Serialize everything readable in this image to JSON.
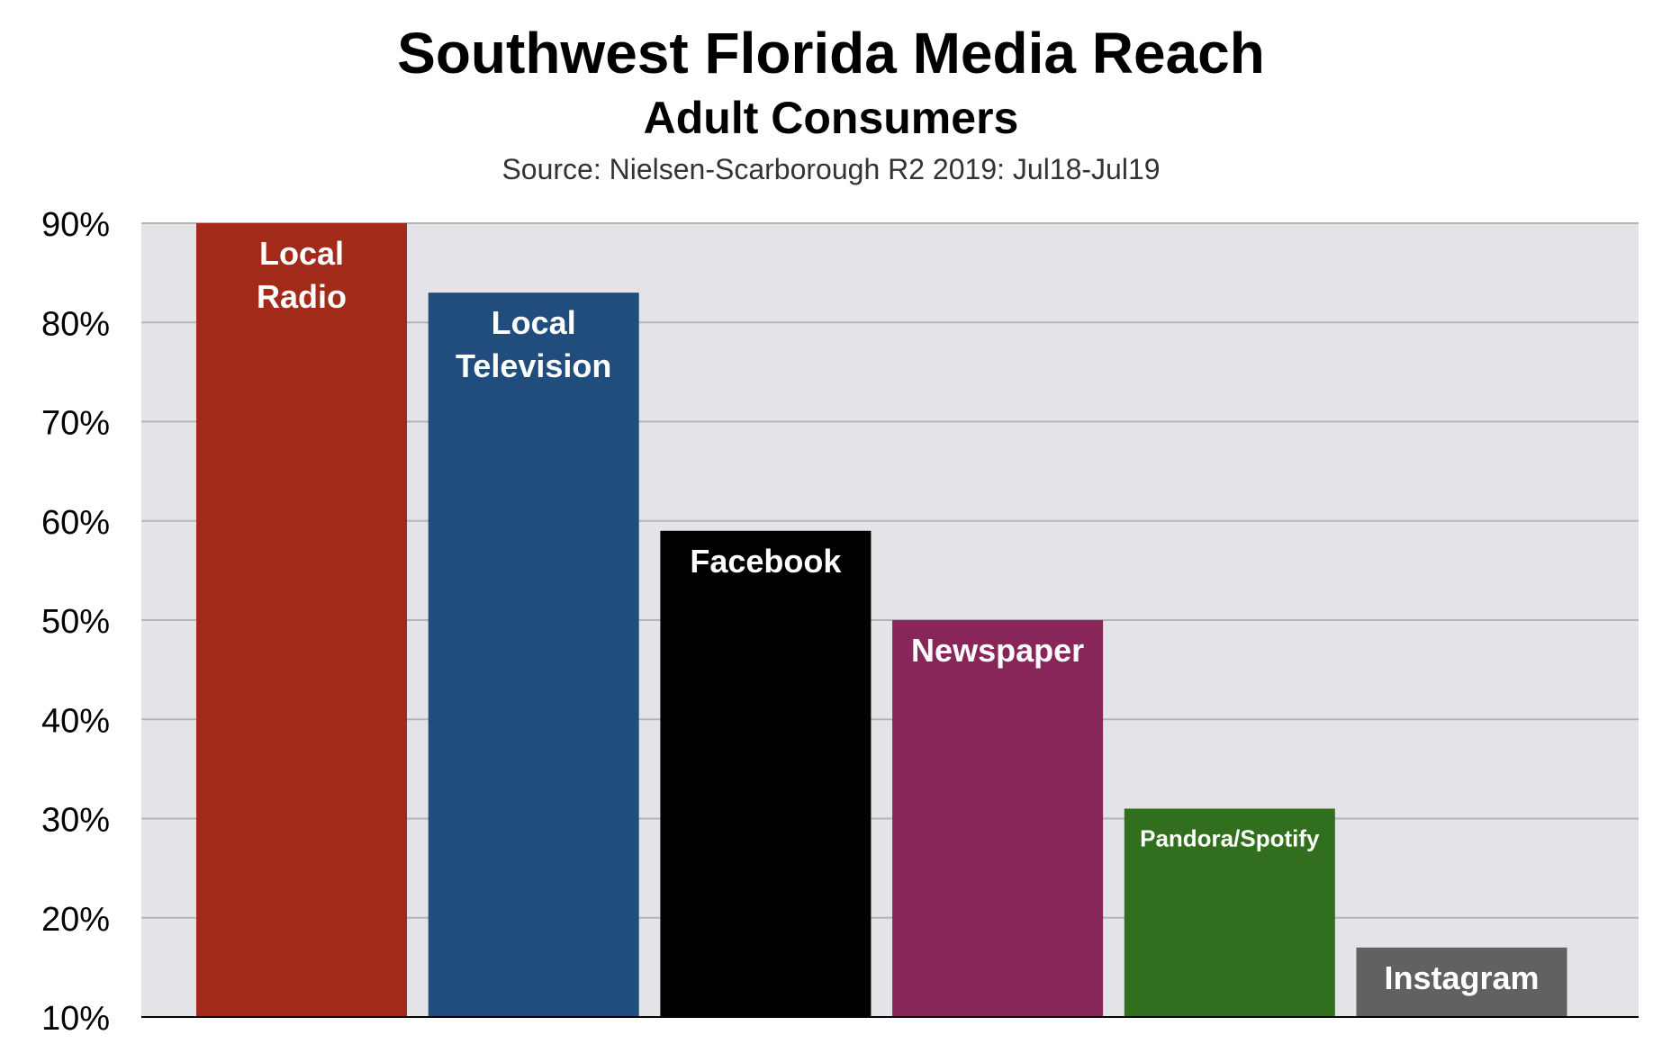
{
  "chart_data": {
    "type": "bar",
    "title": "Southwest Florida Media Reach",
    "subtitle": "Adult Consumers",
    "source": "Source: Nielsen-Scarborough R2 2019: Jul18-Jul19",
    "categories": [
      "Local Radio",
      "Local Television",
      "Facebook",
      "Newspaper",
      "Pandora/Spotify",
      "Instagram"
    ],
    "bar_labels": [
      [
        "Local",
        "Radio"
      ],
      [
        "Local",
        "Television"
      ],
      [
        "Facebook"
      ],
      [
        "Newspaper"
      ],
      [
        "Pandora/Spotify"
      ],
      [
        "Instagram"
      ]
    ],
    "values": [
      90,
      83,
      59,
      50,
      31,
      17
    ],
    "colors": [
      "#A22A18",
      "#204D7B",
      "#000000",
      "#88265A",
      "#316E1E",
      "#616161"
    ],
    "ylim": [
      10,
      90
    ],
    "yticks": [
      10,
      20,
      30,
      40,
      50,
      60,
      70,
      80,
      90
    ],
    "ytick_labels": [
      "10%",
      "20%",
      "30%",
      "40%",
      "50%",
      "60%",
      "70%",
      "80%",
      "90%"
    ],
    "grid": true,
    "plot_background": "#E4E3E7",
    "xlabel": "",
    "ylabel": ""
  }
}
